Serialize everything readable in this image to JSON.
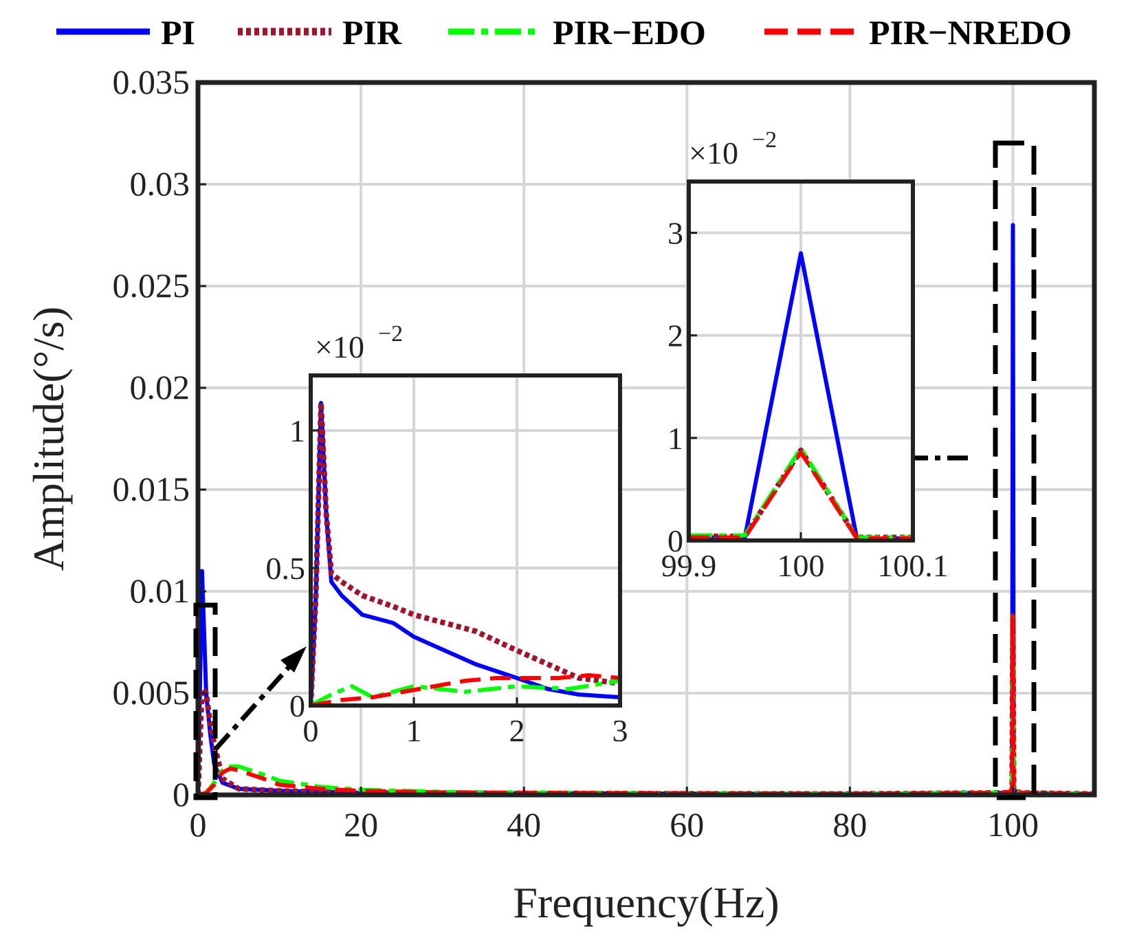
{
  "legend": [
    {
      "label": "PI",
      "color": "#0000ff",
      "style": "solid"
    },
    {
      "label": "PIR",
      "color": "#a0142e",
      "style": "dotted"
    },
    {
      "label": "PIR−EDO",
      "color": "#00ff00",
      "style": "dashdot"
    },
    {
      "label": "PIR−NREDO",
      "color": "#ff0000",
      "style": "dashed"
    }
  ],
  "chart_data": [
    {
      "id": "main",
      "type": "line",
      "xlabel": "Frequency(Hz)",
      "ylabel": "Amplitude(°/s)",
      "xlim": [
        0,
        110
      ],
      "ylim": [
        0,
        0.035
      ],
      "xticks": [
        0,
        20,
        40,
        60,
        80,
        100
      ],
      "xtick_labels": [
        "0",
        "20",
        "40",
        "60",
        "80",
        "100"
      ],
      "yticks": [
        0,
        0.005,
        0.01,
        0.015,
        0.02,
        0.025,
        0.03,
        0.035
      ],
      "ytick_labels": [
        "0",
        "0.005",
        "0.01",
        "0.015",
        "0.02",
        "0.025",
        "0.03",
        "0.035"
      ],
      "grid": true,
      "series": [
        {
          "name": "PI",
          "x": [
            0,
            0.5,
            1,
            1.5,
            2,
            3,
            5,
            10,
            20,
            40,
            60,
            80,
            99,
            99.9,
            100,
            100.1,
            101,
            110
          ],
          "y": [
            0,
            0.011,
            0.005,
            0.003,
            0.0015,
            0.0006,
            0.0003,
            0.0002,
            0.0001,
            8e-05,
            6e-05,
            5e-05,
            0.0001,
            0.0002,
            0.028,
            0.0002,
            0.0001,
            5e-05
          ]
        },
        {
          "name": "PIR",
          "x": [
            0,
            0.5,
            1,
            1.5,
            2,
            3,
            5,
            10,
            20,
            40,
            60,
            80,
            99,
            99.9,
            100,
            100.1,
            101,
            110
          ],
          "y": [
            0,
            0.0052,
            0.005,
            0.0035,
            0.0025,
            0.0008,
            0.0003,
            0.0002,
            0.0001,
            8e-05,
            6e-05,
            5e-05,
            0.0001,
            0.0002,
            0.0088,
            0.0002,
            0.0001,
            5e-05
          ]
        },
        {
          "name": "PIR−EDO",
          "x": [
            0,
            1,
            2,
            3,
            4,
            5,
            8,
            10,
            15,
            20,
            30,
            40,
            60,
            80,
            99,
            99.9,
            100,
            100.1,
            101,
            110
          ],
          "y": [
            0,
            0.0001,
            0.0006,
            0.0012,
            0.0014,
            0.0014,
            0.001,
            0.0007,
            0.0004,
            0.00025,
            0.00015,
            0.0001,
            8e-05,
            6e-05,
            0.0001,
            0.0002,
            0.0089,
            0.0002,
            0.0001,
            5e-05
          ]
        },
        {
          "name": "PIR−NREDO",
          "x": [
            0,
            1,
            2,
            3,
            4,
            5,
            8,
            10,
            15,
            20,
            30,
            40,
            60,
            80,
            99,
            99.9,
            100,
            100.1,
            101,
            110
          ],
          "y": [
            0,
            0.0001,
            0.0005,
            0.0011,
            0.0013,
            0.0012,
            0.0008,
            0.0005,
            0.0003,
            0.0002,
            0.00012,
            0.0001,
            8e-05,
            6e-05,
            0.0001,
            0.0002,
            0.0087,
            0.0002,
            0.0001,
            5e-05
          ]
        }
      ]
    },
    {
      "id": "inset-low",
      "type": "line",
      "multiplier_base": "×10",
      "multiplier_exponent": "−2",
      "xlim": [
        0,
        3
      ],
      "ylim": [
        0,
        1.2
      ],
      "xticks": [
        0,
        1,
        2,
        3
      ],
      "xtick_labels": [
        "0",
        "1",
        "2",
        "3"
      ],
      "yticks": [
        0,
        0.5,
        1
      ],
      "ytick_labels": [
        "0",
        "0.5",
        "1"
      ],
      "grid": true,
      "series": [
        {
          "name": "PI",
          "x": [
            0,
            0.05,
            0.1,
            0.15,
            0.2,
            0.3,
            0.5,
            0.8,
            1.0,
            1.3,
            1.6,
            2.0,
            2.3,
            2.6,
            3.0
          ],
          "y": [
            0,
            0.4,
            1.1,
            0.7,
            0.45,
            0.4,
            0.33,
            0.3,
            0.25,
            0.2,
            0.15,
            0.1,
            0.06,
            0.04,
            0.03
          ]
        },
        {
          "name": "PIR",
          "x": [
            0,
            0.05,
            0.1,
            0.15,
            0.2,
            0.3,
            0.5,
            0.8,
            1.0,
            1.3,
            1.6,
            2.0,
            2.3,
            2.6,
            3.0
          ],
          "y": [
            0,
            0.4,
            1.1,
            0.7,
            0.48,
            0.45,
            0.4,
            0.36,
            0.33,
            0.3,
            0.27,
            0.2,
            0.15,
            0.1,
            0.08
          ]
        },
        {
          "name": "PIR−EDO",
          "x": [
            0,
            0.2,
            0.4,
            0.6,
            0.8,
            1.0,
            1.5,
            2.0,
            2.5,
            3.0
          ],
          "y": [
            0,
            0.04,
            0.07,
            0.03,
            0.05,
            0.07,
            0.05,
            0.07,
            0.06,
            0.09
          ]
        },
        {
          "name": "PIR−NREDO",
          "x": [
            0,
            0.3,
            0.6,
            0.9,
            1.2,
            1.5,
            1.8,
            2.1,
            2.4,
            2.7,
            3.0
          ],
          "y": [
            0,
            0.02,
            0.03,
            0.05,
            0.07,
            0.09,
            0.1,
            0.1,
            0.1,
            0.11,
            0.1
          ]
        }
      ]
    },
    {
      "id": "inset-100",
      "type": "line",
      "multiplier_base": "×10",
      "multiplier_exponent": "−2",
      "xlim": [
        99.9,
        100.1
      ],
      "ylim": [
        0,
        3.5
      ],
      "xticks": [
        99.9,
        100,
        100.1
      ],
      "xtick_labels": [
        "99.9",
        "100",
        "100.1"
      ],
      "yticks": [
        0,
        1,
        2,
        3
      ],
      "ytick_labels": [
        "0",
        "1",
        "2",
        "3"
      ],
      "grid": true,
      "series": [
        {
          "name": "PI",
          "x": [
            99.9,
            99.95,
            100,
            100.05,
            100.1
          ],
          "y": [
            0.03,
            0.03,
            2.8,
            0.02,
            0.02
          ]
        },
        {
          "name": "PIR",
          "x": [
            99.9,
            99.95,
            100,
            100.05,
            100.1
          ],
          "y": [
            0.04,
            0.04,
            0.88,
            0.03,
            0.03
          ]
        },
        {
          "name": "PIR−EDO",
          "x": [
            99.9,
            99.95,
            100,
            100.05,
            100.1
          ],
          "y": [
            0.05,
            0.05,
            0.9,
            0.03,
            0.03
          ]
        },
        {
          "name": "PIR−NREDO",
          "x": [
            99.9,
            99.95,
            100,
            100.05,
            100.1
          ],
          "y": [
            0.03,
            0.03,
            0.86,
            0.02,
            0.02
          ]
        }
      ]
    }
  ]
}
